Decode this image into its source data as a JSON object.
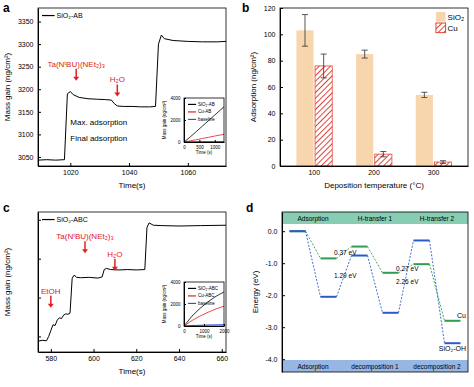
{
  "chart_data": [
    {
      "title": "a",
      "type": "line",
      "x_label": "Time(s)",
      "y_label": "Mass gain (ng/cm²)",
      "xlim": [
        1009,
        1073
      ],
      "xticks": [
        1020,
        1040,
        1060
      ],
      "ylim": [
        3030,
        3380
      ],
      "yticks": [
        3050,
        3100,
        3150,
        3200,
        3250,
        3300,
        3350
      ],
      "legend": "upper left",
      "series": [
        {
          "name": "SiO₂-AB",
          "color": "#000000",
          "x": [
            1009,
            1012,
            1015,
            1018,
            1019,
            1020,
            1021,
            1023,
            1026,
            1029,
            1032,
            1034,
            1035,
            1036,
            1038,
            1041,
            1044,
            1047,
            1049,
            1050,
            1051,
            1052,
            1055,
            1060,
            1065,
            1070,
            1073
          ],
          "values": [
            3043,
            3044,
            3043,
            3044,
            3190,
            3195,
            3188,
            3182,
            3179,
            3178,
            3177,
            3176,
            3168,
            3163,
            3162,
            3162,
            3161,
            3161,
            3162,
            3300,
            3320,
            3312,
            3308,
            3306,
            3305,
            3305,
            3306
          ]
        }
      ],
      "annotations": [
        {
          "text": "Ta(NᵗBU)(NEt₂)₃",
          "x": 1022,
          "y": 3250,
          "color": "#e02020"
        },
        {
          "text": "H₂O",
          "x": 1036,
          "y": 3215,
          "color": "#e02020"
        },
        {
          "text": "Max. adsorption",
          "x": 1020,
          "y": 3120
        },
        {
          "text": "Final adsorption",
          "x": 1020,
          "y": 3085
        }
      ],
      "inset": {
        "type": "line",
        "x_label": "Time (s)",
        "y_label": "Mass gain (ng/cm²)",
        "xlim": [
          0,
          1300
        ],
        "xticks": [
          0,
          500,
          1000
        ],
        "ylim": [
          0,
          4000
        ],
        "yticks": [
          0,
          2000,
          4000
        ],
        "legend": "upper left",
        "series": [
          {
            "name": "SiO₂-AB",
            "color": "#000000",
            "x": [
              0,
              200,
              400,
              600,
              800,
              1000,
              1200,
              1300
            ],
            "values": [
              0,
              450,
              950,
              1450,
              1950,
              2450,
              2950,
              3200
            ]
          },
          {
            "name": "Cu-AB",
            "color": "#e02020",
            "x": [
              0,
              200,
              400,
              600,
              800,
              1000,
              1200,
              1300
            ],
            "values": [
              0,
              100,
              210,
              320,
              430,
              540,
              650,
              700
            ]
          },
          {
            "name": "baseline",
            "color": "#3050e0",
            "x": [
              0,
              200,
              400,
              600,
              800,
              1000,
              1200,
              1300
            ],
            "values": [
              0,
              5,
              10,
              15,
              20,
              25,
              30,
              30
            ]
          }
        ]
      }
    },
    {
      "title": "b",
      "type": "bar",
      "x_label": "Deposition temperature (°C)",
      "y_label": "Adsorption (ng/cm²)",
      "categories": [
        "100",
        "200",
        "300"
      ],
      "ylim": [
        0,
        120
      ],
      "yticks": [
        0,
        20,
        40,
        60,
        80,
        100,
        120
      ],
      "legend": "upper right",
      "series": [
        {
          "name": "SiO₂",
          "color": "#f7d6ae",
          "values": [
            103,
            85,
            54
          ],
          "errors": [
            12,
            3,
            2
          ]
        },
        {
          "name": "Cu",
          "color": "#e0453a",
          "line_style": "hatch",
          "values": [
            76,
            9,
            3
          ],
          "errors": [
            9,
            2,
            1
          ]
        }
      ]
    },
    {
      "title": "c",
      "type": "line",
      "x_label": "Time(s)",
      "y_label": "Mass gain (ng/cm²)",
      "xlim": [
        574,
        662
      ],
      "xticks": [
        580,
        600,
        620,
        640,
        660
      ],
      "ylim": [
        2960,
        3320
      ],
      "yticks": [
        3000,
        3100,
        3200,
        3300
      ],
      "tick_labels": "x",
      "legend": "upper left",
      "series": [
        {
          "name": "SiO₂-ABC",
          "color": "#000000",
          "x": [
            574,
            576,
            578,
            579,
            580,
            581,
            582,
            583,
            584,
            585,
            586,
            587,
            588,
            589,
            590,
            591,
            592,
            594,
            598,
            602,
            604,
            605,
            606,
            608,
            612,
            616,
            620,
            624,
            625,
            626,
            628,
            632,
            640,
            650,
            662
          ],
          "values": [
            2988,
            2990,
            2989,
            3000,
            3015,
            3030,
            3028,
            3042,
            3048,
            3046,
            3055,
            3058,
            3057,
            3060,
            3150,
            3158,
            3152,
            3151,
            3152,
            3150,
            3153,
            3172,
            3175,
            3172,
            3171,
            3172,
            3171,
            3172,
            3280,
            3292,
            3286,
            3285,
            3284,
            3285,
            3286
          ]
        }
      ],
      "annotations": [
        {
          "text": "EtOH",
          "x": 580,
          "y": 3110,
          "color": "#e02020"
        },
        {
          "text": "Ta(NᵗBU)(NEt₂)₃",
          "x": 596,
          "y": 3250,
          "color": "#e02020"
        },
        {
          "text": "H₂O",
          "x": 610,
          "y": 3205,
          "color": "#e02020"
        }
      ],
      "inset": {
        "type": "line",
        "x_label": "Time (s)",
        "y_label": "Mass gain (ng/cm²)",
        "xlim": [
          0,
          2000
        ],
        "xticks": [
          0,
          1000,
          2000
        ],
        "ylim": [
          0,
          4000
        ],
        "yticks": [
          0,
          2000,
          4000
        ],
        "legend": "upper left",
        "series": [
          {
            "name": "SiO₂-ABC",
            "color": "#000000",
            "x": [
              0,
              400,
              800,
              1200,
              1600,
              2000
            ],
            "values": [
              0,
              900,
              1600,
              2200,
              2700,
              3100
            ]
          },
          {
            "name": "Cu-ABC",
            "color": "#e02020",
            "x": [
              0,
              400,
              800,
              1200,
              1600,
              2000
            ],
            "values": [
              0,
              500,
              900,
              1250,
              1550,
              1800
            ]
          },
          {
            "name": "baseline",
            "color": "#3050e0",
            "x": [
              0,
              400,
              800,
              1200,
              1600,
              2000
            ],
            "values": [
              0,
              40,
              70,
              100,
              120,
              140
            ]
          }
        ]
      }
    },
    {
      "title": "d",
      "type": "profile",
      "y_label": "Energy (eV)",
      "categories": [
        null,
        null,
        null,
        null,
        null,
        null
      ],
      "tick_labels": "y",
      "ylim": [
        -4.4,
        0.6
      ],
      "yticks": [
        {
          "value": 0,
          "label": "0.0"
        },
        {
          "value": -1,
          "label": "-1.0"
        },
        {
          "value": -2,
          "label": "-2.0"
        },
        {
          "value": -3,
          "label": "-3.0"
        },
        {
          "value": -4,
          "label": "-4.0"
        }
      ],
      "header": [
        "Adsorption",
        "H-transfer 1",
        "H-transfer 2"
      ],
      "footer": [
        "Adsorption",
        "decomposition 1",
        "decomposition 2"
      ],
      "series": [
        {
          "name": "Cu",
          "color": "#2e9e4f",
          "values": [
            0,
            -0.85,
            -0.48,
            -1.3,
            -1.03,
            -2.8
          ]
        },
        {
          "name": "SiO₂-OH",
          "color": "#2a5cc8",
          "values": [
            0,
            -2.05,
            -0.76,
            -2.55,
            -0.29,
            -3.5
          ]
        }
      ],
      "annotations": [
        {
          "text": "0.37 eV",
          "x": 2,
          "y": -0.67
        },
        {
          "text": "1.29 eV",
          "x": 2,
          "y": -1.4
        },
        {
          "text": "0.27 eV",
          "x": 4,
          "y": -1.17
        },
        {
          "text": "2.26 eV",
          "x": 4,
          "y": -1.6
        }
      ]
    }
  ]
}
